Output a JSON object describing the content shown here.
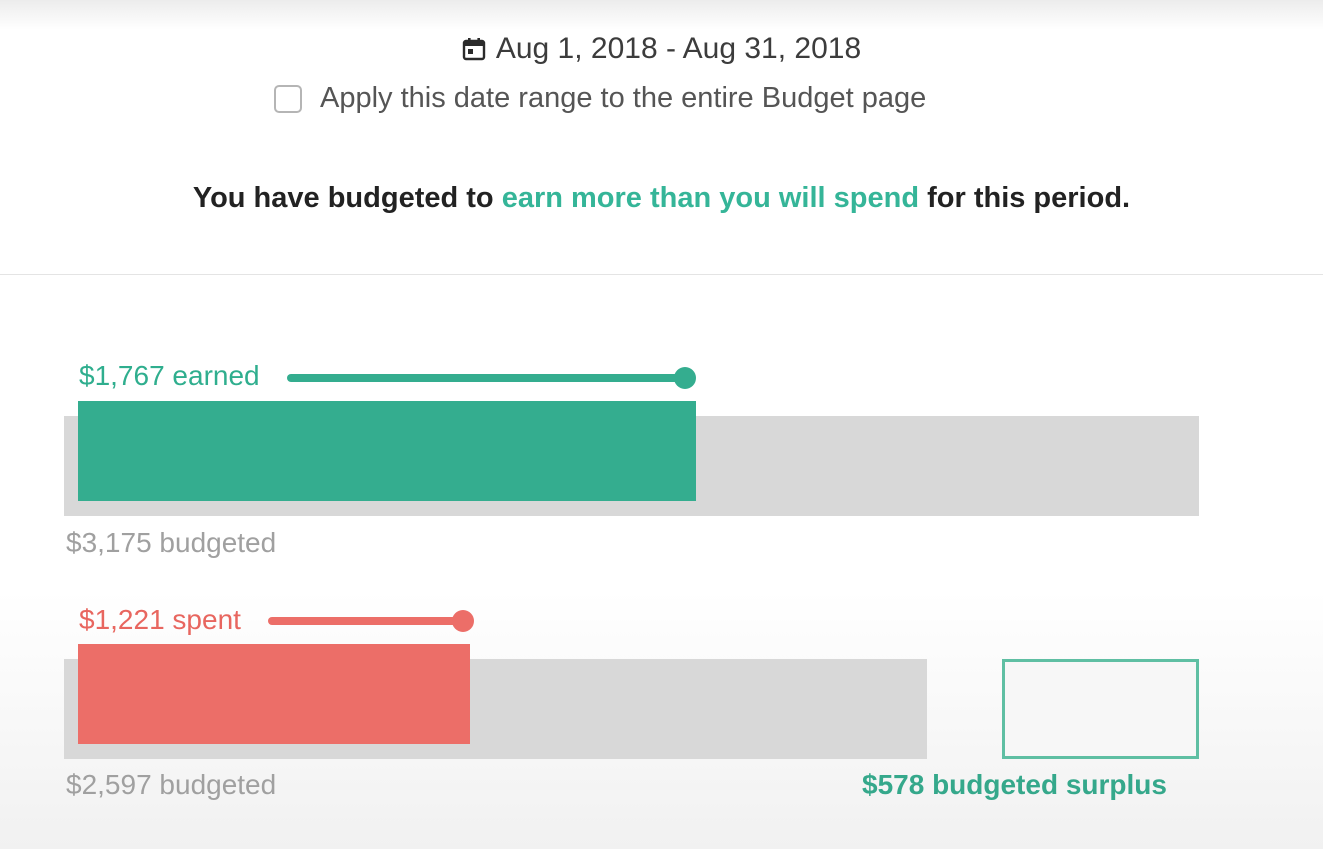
{
  "header": {
    "date_range": "Aug 1, 2018 - Aug 31, 2018",
    "calendar_icon": "calendar-icon",
    "apply_label": "Apply this date range to the entire Budget page",
    "apply_checked": false
  },
  "summary": {
    "prefix": "You have budgeted to ",
    "highlight": "earn more than you will spend",
    "suffix": " for this period."
  },
  "income": {
    "earned_label": "$1,767 earned",
    "budgeted_label": "$3,175 budgeted",
    "earned_value": 1767,
    "budgeted_value": 3175
  },
  "expenses": {
    "spent_label": "$1,221 spent",
    "budgeted_label": "$2,597 budgeted",
    "spent_value": 1221,
    "budgeted_value": 2597
  },
  "surplus": {
    "label": "$578 budgeted surplus",
    "value": 578
  },
  "colors": {
    "earned": "#34ad8f",
    "spent": "#ec6e68",
    "track": "#d8d8d8",
    "accent_text": "#35b598",
    "surplus_border": "#5fbfa3"
  }
}
